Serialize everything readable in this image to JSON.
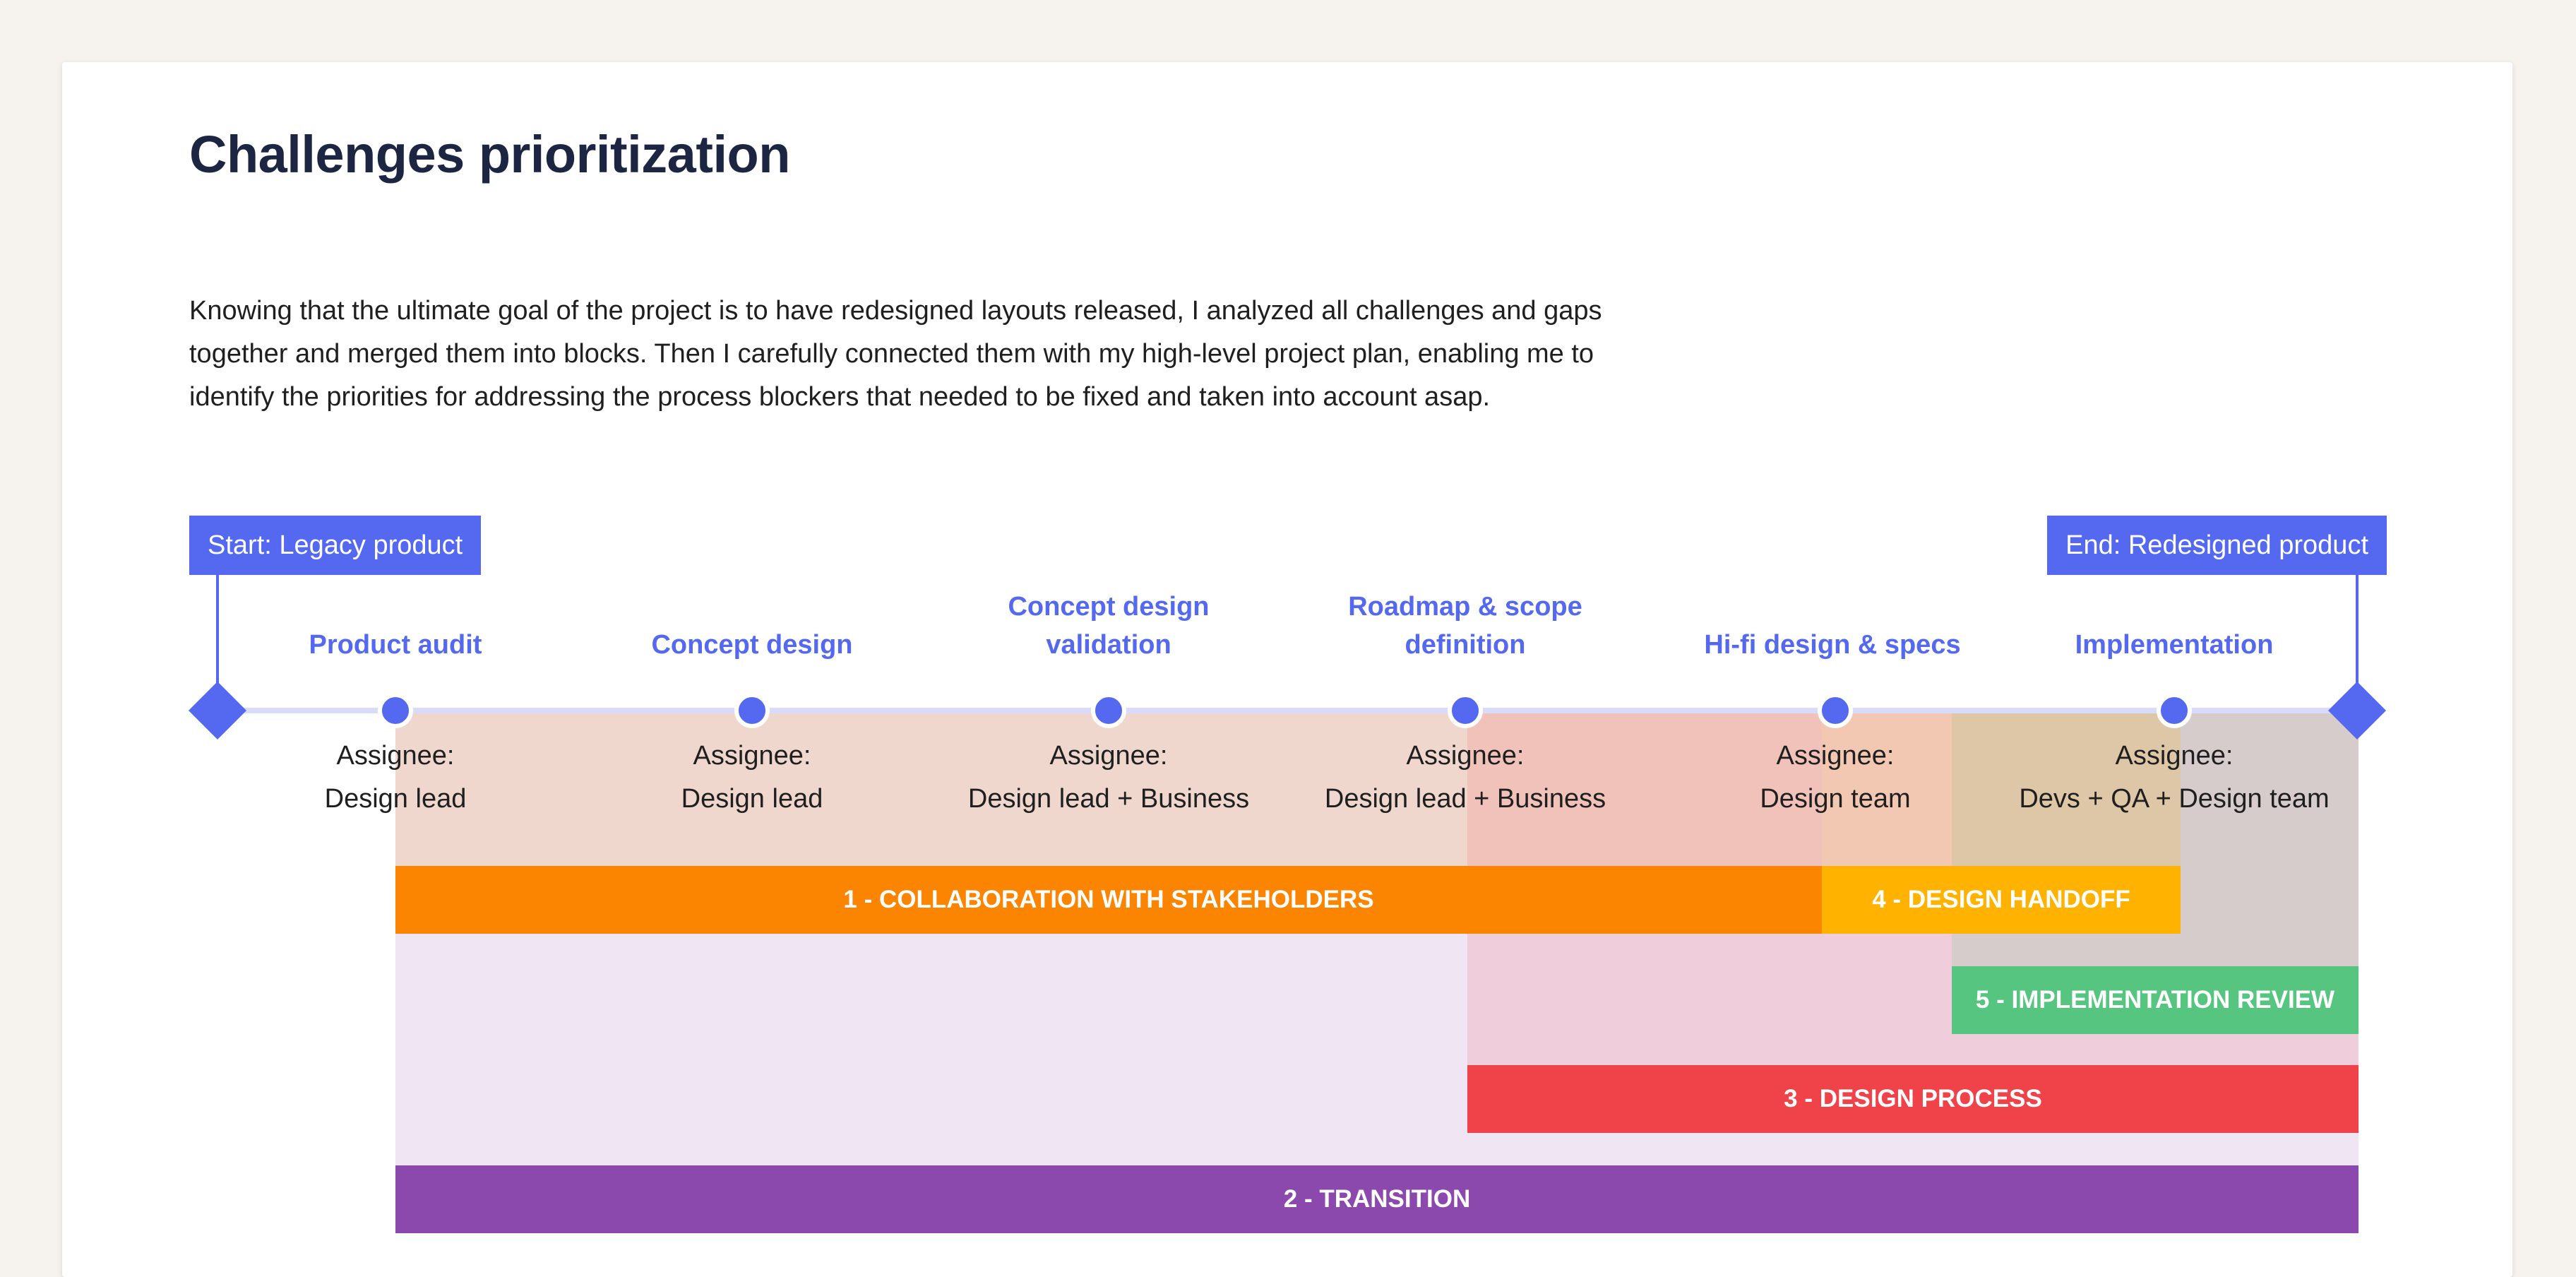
{
  "page": {
    "title": "Challenges prioritization",
    "intro_lines": [
      "Knowing that the ultimate goal of the project is to have redesigned layouts released, I analyzed all challenges and gaps",
      "together and merged them into blocks. Then I carefully connected them with my high-level project plan, enabling me to",
      "identify the priorities for addressing the process blockers that needed to be fixed and taken into account asap."
    ]
  },
  "timeline": {
    "start_label": "Start: Legacy product",
    "end_label": "End: Redesigned product",
    "assignee_label": "Assignee:",
    "phases": [
      {
        "title": "Product audit",
        "assignee": "Design lead"
      },
      {
        "title": "Concept design",
        "assignee": "Design lead"
      },
      {
        "title": "Concept design validation",
        "assignee": "Design lead + Business"
      },
      {
        "title": "Roadmap & scope definition",
        "assignee": "Design lead + Business"
      },
      {
        "title": "Hi-fi design & specs",
        "assignee": "Design team"
      },
      {
        "title": "Implementation",
        "assignee": "Devs + QA + Design team"
      }
    ]
  },
  "blocks": [
    {
      "label": "1 - COLLABORATION WITH STAKEHOLDERS",
      "color": "#fb8500"
    },
    {
      "label": "4 - DESIGN HANDOFF",
      "color": "#ffb300"
    },
    {
      "label": "5 - IMPLEMENTATION REVIEW",
      "color": "#55c57f"
    },
    {
      "label": "3 - DESIGN PROCESS",
      "color": "#f04349"
    },
    {
      "label": "2 - TRANSITION",
      "color": "#8b49ad"
    }
  ],
  "colors": {
    "accent": "#5468f0",
    "heading": "#1c2541"
  }
}
